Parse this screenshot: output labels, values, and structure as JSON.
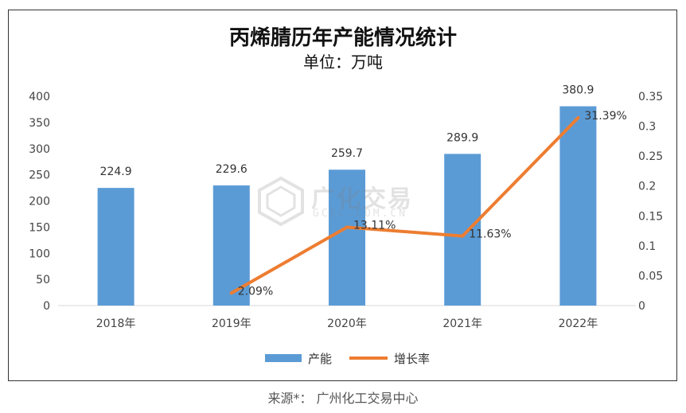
{
  "chart_data": {
    "type": "bar",
    "title": "丙烯腈历年产能情况统计",
    "subtitle": "单位：万吨",
    "categories": [
      "2018年",
      "2019年",
      "2020年",
      "2021年",
      "2022年"
    ],
    "series": [
      {
        "name": "产能",
        "type": "bar",
        "axis": "left",
        "color": "#5b9bd5",
        "values": [
          224.9,
          229.6,
          259.7,
          289.9,
          380.9
        ],
        "labels": [
          "224.9",
          "229.6",
          "259.7",
          "289.9",
          "380.9"
        ]
      },
      {
        "name": "增长率",
        "type": "line",
        "axis": "right",
        "color": "#ed7d31",
        "values": [
          null,
          0.0209,
          0.1311,
          0.1163,
          0.3139
        ],
        "labels": [
          "",
          "2.09%",
          "13.11%",
          "11.63%",
          "31.39%"
        ]
      }
    ],
    "y_left": {
      "min": 0,
      "max": 400,
      "ticks": [
        "0",
        "50",
        "100",
        "150",
        "200",
        "250",
        "300",
        "350",
        "400"
      ]
    },
    "y_right": {
      "min": 0,
      "max": 0.35,
      "ticks": [
        "0",
        "0.05",
        "0.1",
        "0.15",
        "0.2",
        "0.25",
        "0.3",
        "0.35"
      ]
    },
    "grid": false,
    "legend_position": "bottom"
  },
  "watermark": {
    "title": "广化交易",
    "subtitle": "GCEC.COM.CN"
  },
  "source": "来源*： 广州化工交易中心"
}
